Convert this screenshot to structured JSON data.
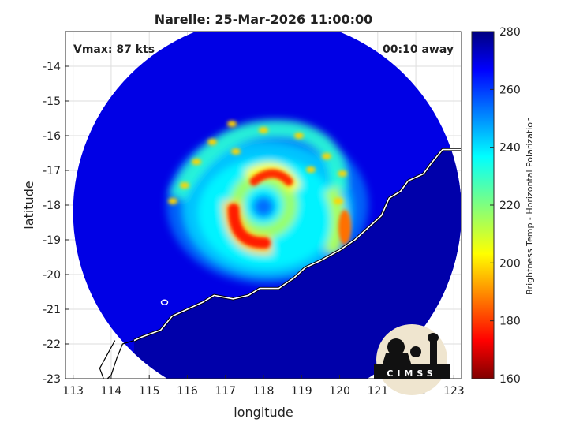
{
  "chart_data": {
    "type": "heatmap",
    "title": "Narelle: 25-Mar-2026 11:00:00",
    "xlabel": "longitude",
    "ylabel": "latitude",
    "xlim": [
      112.8,
      123.2
    ],
    "ylim": [
      -23,
      -13
    ],
    "xticks": [
      113,
      114,
      115,
      116,
      117,
      118,
      119,
      120,
      121,
      122,
      123
    ],
    "yticks": [
      -14,
      -15,
      -16,
      -17,
      -18,
      -19,
      -20,
      -21,
      -22,
      -23
    ],
    "grid": true,
    "annotations": {
      "vmax": "Vmax: 87 kts",
      "time_away": "00:10 away"
    },
    "colorbar": {
      "label": "Brightness Temp - Horizontal Polarization",
      "range": [
        160,
        280
      ],
      "ticks": [
        160,
        180,
        200,
        220,
        240,
        260,
        280
      ],
      "colormap": "jet"
    },
    "storm_center": {
      "lon": 118.0,
      "lat": -18.0
    },
    "swath": {
      "center_lon": 118.1,
      "center_lat": -18.2,
      "radius_deg": 5.1
    },
    "background_brightness_temp": 268,
    "land_brightness_temp": 275,
    "logo_text": "CIMSS"
  }
}
